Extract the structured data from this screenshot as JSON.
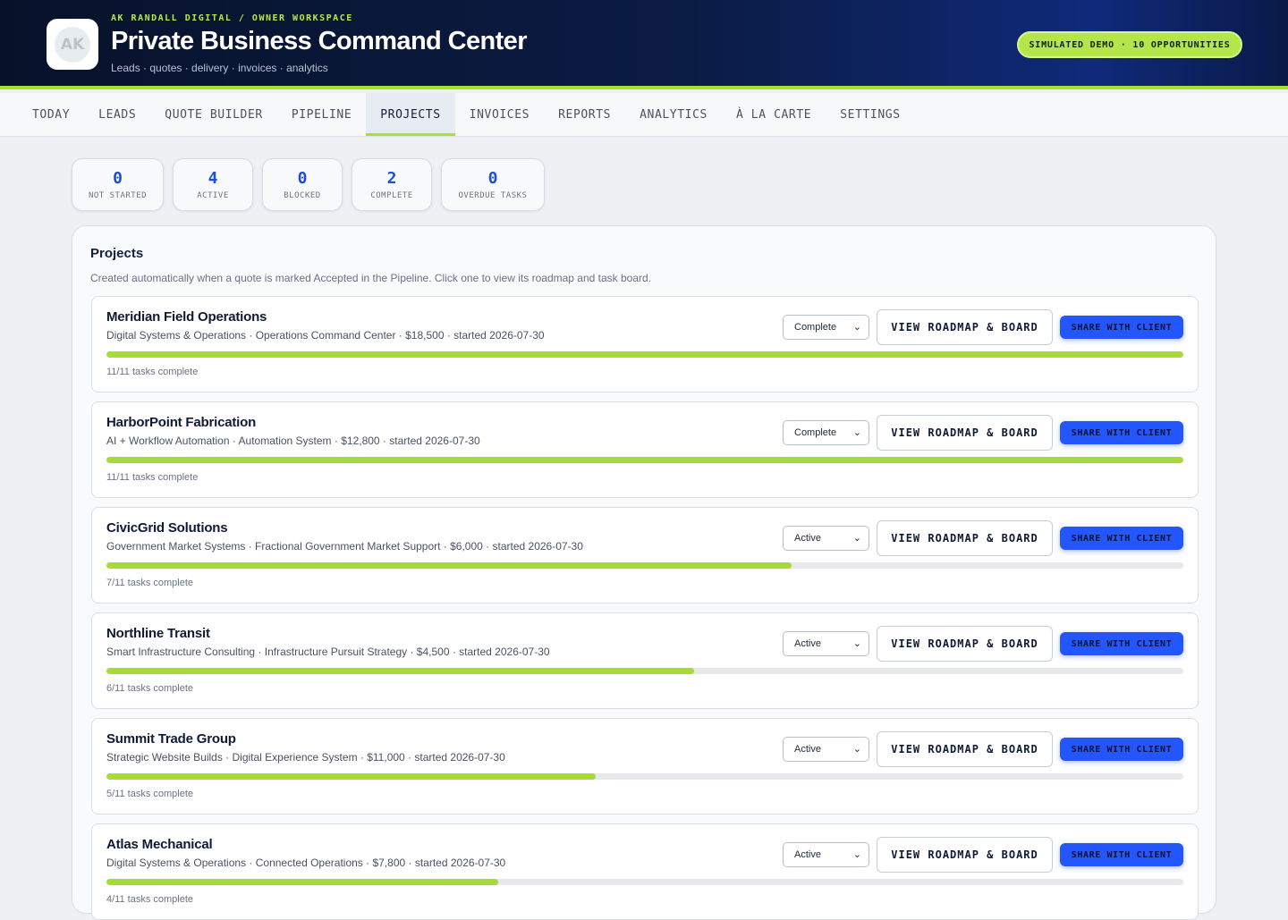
{
  "header": {
    "workspace_label": "AK RANDALL DIGITAL / OWNER WORKSPACE",
    "title": "Private Business Command Center",
    "subtitle": "Leads · quotes · delivery · invoices · analytics",
    "logo_text": "AK",
    "logo_icon": "paper-plane-icon",
    "demo_badge": "SIMULATED DEMO · 10 OPPORTUNITIES"
  },
  "nav": {
    "tabs": [
      {
        "label": "TODAY",
        "active": false
      },
      {
        "label": "LEADS",
        "active": false
      },
      {
        "label": "QUOTE BUILDER",
        "active": false
      },
      {
        "label": "PIPELINE",
        "active": false
      },
      {
        "label": "PROJECTS",
        "active": true
      },
      {
        "label": "INVOICES",
        "active": false
      },
      {
        "label": "REPORTS",
        "active": false
      },
      {
        "label": "ANALYTICS",
        "active": false
      },
      {
        "label": "À LA CARTE",
        "active": false
      },
      {
        "label": "SETTINGS",
        "active": false
      }
    ]
  },
  "stats": [
    {
      "value": "0",
      "label": "NOT STARTED"
    },
    {
      "value": "4",
      "label": "ACTIVE"
    },
    {
      "value": "0",
      "label": "BLOCKED"
    },
    {
      "value": "2",
      "label": "COMPLETE"
    },
    {
      "value": "0",
      "label": "OVERDUE TASKS"
    }
  ],
  "projects_panel": {
    "title": "Projects",
    "description": "Created automatically when a quote is marked Accepted in the Pipeline. Click one to view its roadmap and task board.",
    "roadmap_button": "VIEW ROADMAP & BOARD",
    "share_button": "SHARE WITH CLIENT",
    "items": [
      {
        "name": "Meridian Field Operations",
        "meta": "Digital Systems & Operations · Operations Command Center · $18,500 · started 2026-07-30",
        "status": "Complete",
        "tasks_done": 11,
        "tasks_total": 11,
        "tasks_text": "11/11 tasks complete"
      },
      {
        "name": "HarborPoint Fabrication",
        "meta": "AI + Workflow Automation · Automation System · $12,800 · started 2026-07-30",
        "status": "Complete",
        "tasks_done": 11,
        "tasks_total": 11,
        "tasks_text": "11/11 tasks complete"
      },
      {
        "name": "CivicGrid Solutions",
        "meta": "Government Market Systems · Fractional Government Market Support · $6,000 · started 2026-07-30",
        "status": "Active",
        "tasks_done": 7,
        "tasks_total": 11,
        "tasks_text": "7/11 tasks complete"
      },
      {
        "name": "Northline Transit",
        "meta": "Smart Infrastructure Consulting · Infrastructure Pursuit Strategy · $4,500 · started 2026-07-30",
        "status": "Active",
        "tasks_done": 6,
        "tasks_total": 11,
        "tasks_text": "6/11 tasks complete"
      },
      {
        "name": "Summit Trade Group",
        "meta": "Strategic Website Builds · Digital Experience System · $11,000 · started 2026-07-30",
        "status": "Active",
        "tasks_done": 5,
        "tasks_total": 11,
        "tasks_text": "5/11 tasks complete"
      },
      {
        "name": "Atlas Mechanical",
        "meta": "Digital Systems & Operations · Connected Operations · $7,800 · started 2026-07-30",
        "status": "Active",
        "tasks_done": 4,
        "tasks_total": 11,
        "tasks_text": "4/11 tasks complete"
      }
    ]
  },
  "colors": {
    "accent_lime": "#a6e22e",
    "primary_blue": "#2456ff",
    "stat_blue": "#1d4ed8",
    "header_navy": "#07122a"
  }
}
